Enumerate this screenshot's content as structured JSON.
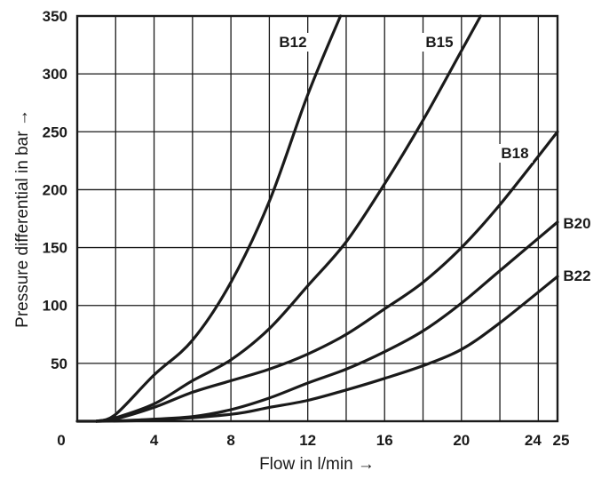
{
  "chart_data": {
    "type": "line",
    "xlabel": "Flow in l/min →",
    "ylabel": "Pressure differential in bar →",
    "xlim": [
      0,
      25
    ],
    "ylim": [
      0,
      350
    ],
    "x_ticks": [
      0,
      4,
      8,
      12,
      16,
      20,
      24,
      25
    ],
    "y_ticks": [
      50,
      100,
      150,
      200,
      250,
      300,
      350
    ],
    "grid": true,
    "series": [
      {
        "name": "B12",
        "points": [
          [
            1,
            0
          ],
          [
            2,
            6
          ],
          [
            4,
            40
          ],
          [
            6,
            70
          ],
          [
            8,
            120
          ],
          [
            10,
            190
          ],
          [
            12,
            282
          ],
          [
            13.7,
            350
          ]
        ]
      },
      {
        "name": "B15",
        "points": [
          [
            1,
            0
          ],
          [
            2,
            3
          ],
          [
            4,
            15
          ],
          [
            6,
            35
          ],
          [
            8,
            53
          ],
          [
            10,
            80
          ],
          [
            12,
            117
          ],
          [
            14,
            155
          ],
          [
            16,
            205
          ],
          [
            18,
            260
          ],
          [
            20,
            320
          ],
          [
            21,
            350
          ]
        ]
      },
      {
        "name": "B18",
        "points": [
          [
            1,
            0
          ],
          [
            2,
            2
          ],
          [
            4,
            12
          ],
          [
            6,
            25
          ],
          [
            8,
            35
          ],
          [
            10,
            45
          ],
          [
            12,
            58
          ],
          [
            14,
            75
          ],
          [
            16,
            97
          ],
          [
            18,
            120
          ],
          [
            20,
            150
          ],
          [
            22,
            187
          ],
          [
            25,
            250
          ]
        ]
      },
      {
        "name": "B20",
        "points": [
          [
            1,
            0
          ],
          [
            3,
            1
          ],
          [
            6,
            4
          ],
          [
            8,
            10
          ],
          [
            10,
            20
          ],
          [
            12,
            33
          ],
          [
            14,
            45
          ],
          [
            16,
            60
          ],
          [
            18,
            78
          ],
          [
            20,
            102
          ],
          [
            22,
            130
          ],
          [
            25,
            172
          ]
        ]
      },
      {
        "name": "B22",
        "points": [
          [
            1,
            0
          ],
          [
            4,
            1
          ],
          [
            8,
            6
          ],
          [
            10,
            12
          ],
          [
            12,
            18
          ],
          [
            14,
            27
          ],
          [
            16,
            37
          ],
          [
            18,
            48
          ],
          [
            20,
            62
          ],
          [
            22,
            85
          ],
          [
            25,
            125
          ]
        ]
      }
    ]
  }
}
